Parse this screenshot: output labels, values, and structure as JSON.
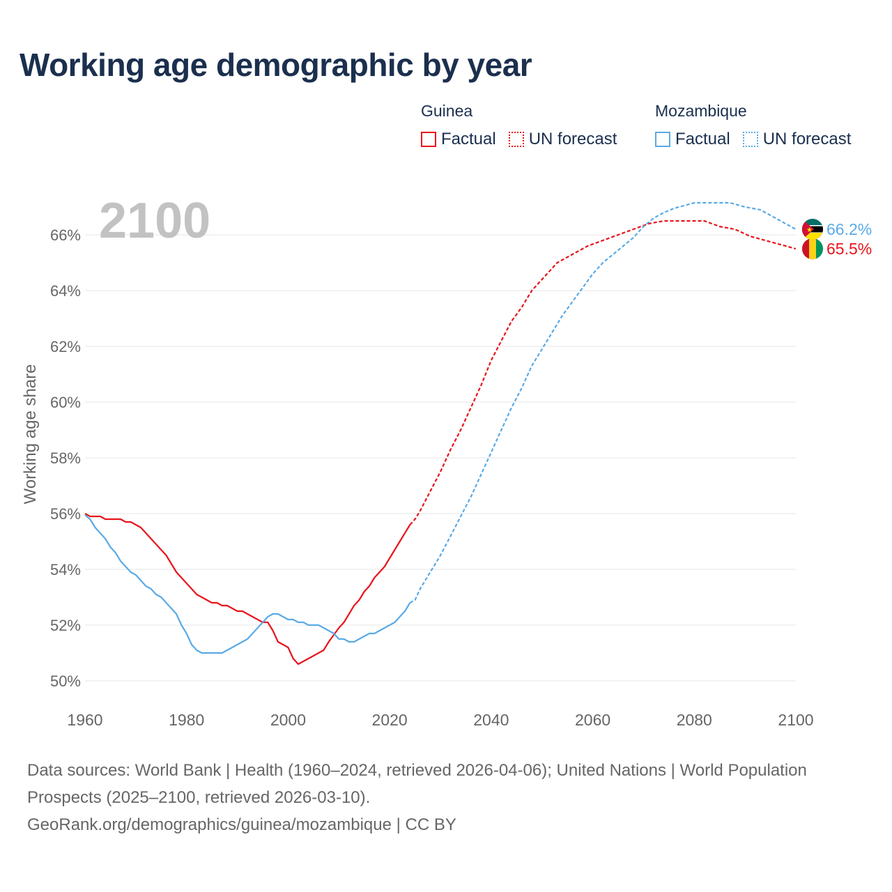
{
  "title": "Working age demographic by year",
  "legend": {
    "groups": [
      {
        "name": "Guinea",
        "color": "#e8141c",
        "factual_label": "Factual",
        "forecast_label": "UN forecast"
      },
      {
        "name": "Mozambique",
        "color": "#5aaae6",
        "factual_label": "Factual",
        "forecast_label": "UN forecast"
      }
    ]
  },
  "footer": {
    "line1": "Data sources: World Bank | Health (1960–2024, retrieved 2026-04-06); United Nations | World Population Prospects (2025–2100, retrieved 2026-03-10).",
    "line2": "GeoRank.org/demographics/guinea/mozambique | CC BY"
  },
  "chart_data": {
    "type": "line",
    "year_watermark": "2100",
    "ylabel": "Working age share",
    "xlabel": "",
    "xlim": [
      1960,
      2100
    ],
    "ylim": [
      49.5,
      67.5
    ],
    "x_ticks": [
      1960,
      1980,
      2000,
      2020,
      2040,
      2060,
      2080,
      2100
    ],
    "y_ticks": [
      50,
      52,
      54,
      56,
      58,
      60,
      62,
      64,
      66
    ],
    "y_tick_suffix": "%",
    "grid": true,
    "factual_end_year": 2024,
    "series": [
      {
        "name": "Guinea",
        "color": "#e8141c",
        "end_label": "65.5%",
        "flag": "guinea-flag",
        "points": [
          [
            1960,
            56.0
          ],
          [
            1961,
            55.9
          ],
          [
            1963,
            55.9
          ],
          [
            1964,
            55.8
          ],
          [
            1967,
            55.8
          ],
          [
            1968,
            55.7
          ],
          [
            1969,
            55.7
          ],
          [
            1971,
            55.5
          ],
          [
            1973,
            55.1
          ],
          [
            1976,
            54.5
          ],
          [
            1978,
            53.9
          ],
          [
            1980,
            53.5
          ],
          [
            1982,
            53.1
          ],
          [
            1984,
            52.9
          ],
          [
            1985,
            52.8
          ],
          [
            1986,
            52.8
          ],
          [
            1987,
            52.7
          ],
          [
            1988,
            52.7
          ],
          [
            1990,
            52.5
          ],
          [
            1991,
            52.5
          ],
          [
            1993,
            52.3
          ],
          [
            1995,
            52.1
          ],
          [
            1996,
            52.1
          ],
          [
            1997,
            51.8
          ],
          [
            1998,
            51.4
          ],
          [
            2000,
            51.2
          ],
          [
            2001,
            50.8
          ],
          [
            2002,
            50.6
          ],
          [
            2004,
            50.8
          ],
          [
            2005,
            50.9
          ],
          [
            2007,
            51.1
          ],
          [
            2008,
            51.4
          ],
          [
            2010,
            51.9
          ],
          [
            2011,
            52.1
          ],
          [
            2013,
            52.7
          ],
          [
            2014,
            52.9
          ],
          [
            2015,
            53.2
          ],
          [
            2016,
            53.4
          ],
          [
            2017,
            53.7
          ],
          [
            2019,
            54.1
          ],
          [
            2020,
            54.4
          ],
          [
            2022,
            55.0
          ],
          [
            2024,
            55.6
          ],
          [
            2025,
            55.8
          ],
          [
            2026,
            56.1
          ],
          [
            2028,
            56.8
          ],
          [
            2030,
            57.5
          ],
          [
            2032,
            58.3
          ],
          [
            2034,
            59.0
          ],
          [
            2036,
            59.8
          ],
          [
            2038,
            60.6
          ],
          [
            2040,
            61.5
          ],
          [
            2042,
            62.2
          ],
          [
            2044,
            62.9
          ],
          [
            2046,
            63.4
          ],
          [
            2048,
            64.0
          ],
          [
            2050,
            64.4
          ],
          [
            2052,
            64.8
          ],
          [
            2053,
            65.0
          ],
          [
            2056,
            65.3
          ],
          [
            2059,
            65.6
          ],
          [
            2062,
            65.8
          ],
          [
            2065,
            66.0
          ],
          [
            2068,
            66.2
          ],
          [
            2071,
            66.4
          ],
          [
            2074,
            66.5
          ],
          [
            2077,
            66.5
          ],
          [
            2082,
            66.5
          ],
          [
            2085,
            66.3
          ],
          [
            2088,
            66.2
          ],
          [
            2091,
            65.95
          ],
          [
            2094,
            65.8
          ],
          [
            2097,
            65.65
          ],
          [
            2100,
            65.5
          ]
        ]
      },
      {
        "name": "Mozambique",
        "color": "#5aaae6",
        "end_label": "66.2%",
        "flag": "mozambique-flag",
        "points": [
          [
            1960,
            55.95
          ],
          [
            1961,
            55.8
          ],
          [
            1962,
            55.5
          ],
          [
            1964,
            55.1
          ],
          [
            1965,
            54.8
          ],
          [
            1966,
            54.6
          ],
          [
            1967,
            54.3
          ],
          [
            1969,
            53.9
          ],
          [
            1970,
            53.8
          ],
          [
            1972,
            53.4
          ],
          [
            1973,
            53.3
          ],
          [
            1974,
            53.1
          ],
          [
            1975,
            53.0
          ],
          [
            1978,
            52.4
          ],
          [
            1979,
            52.0
          ],
          [
            1980,
            51.7
          ],
          [
            1981,
            51.3
          ],
          [
            1982,
            51.1
          ],
          [
            1983,
            51.0
          ],
          [
            1987,
            51.0
          ],
          [
            1989,
            51.2
          ],
          [
            1991,
            51.4
          ],
          [
            1992,
            51.5
          ],
          [
            1994,
            51.9
          ],
          [
            1996,
            52.3
          ],
          [
            1997,
            52.4
          ],
          [
            1998,
            52.4
          ],
          [
            2000,
            52.2
          ],
          [
            2001,
            52.2
          ],
          [
            2002,
            52.1
          ],
          [
            2003,
            52.1
          ],
          [
            2004,
            52.0
          ],
          [
            2006,
            52.0
          ],
          [
            2007,
            51.9
          ],
          [
            2009,
            51.7
          ],
          [
            2010,
            51.5
          ],
          [
            2011,
            51.5
          ],
          [
            2012,
            51.4
          ],
          [
            2013,
            51.4
          ],
          [
            2015,
            51.6
          ],
          [
            2016,
            51.7
          ],
          [
            2017,
            51.7
          ],
          [
            2019,
            51.9
          ],
          [
            2021,
            52.1
          ],
          [
            2023,
            52.5
          ],
          [
            2024,
            52.8
          ],
          [
            2025,
            52.9
          ],
          [
            2026,
            53.3
          ],
          [
            2028,
            53.9
          ],
          [
            2030,
            54.5
          ],
          [
            2032,
            55.2
          ],
          [
            2034,
            55.9
          ],
          [
            2036,
            56.6
          ],
          [
            2038,
            57.4
          ],
          [
            2040,
            58.2
          ],
          [
            2042,
            59.0
          ],
          [
            2044,
            59.8
          ],
          [
            2046,
            60.5
          ],
          [
            2048,
            61.3
          ],
          [
            2050,
            61.9
          ],
          [
            2052,
            62.5
          ],
          [
            2054,
            63.1
          ],
          [
            2056,
            63.6
          ],
          [
            2058,
            64.1
          ],
          [
            2060,
            64.6
          ],
          [
            2062,
            65.0
          ],
          [
            2064,
            65.3
          ],
          [
            2066,
            65.6
          ],
          [
            2068,
            65.9
          ],
          [
            2070,
            66.3
          ],
          [
            2072,
            66.6
          ],
          [
            2074,
            66.8
          ],
          [
            2076,
            66.95
          ],
          [
            2078,
            67.05
          ],
          [
            2080,
            67.15
          ],
          [
            2087,
            67.15
          ],
          [
            2090,
            67.0
          ],
          [
            2093,
            66.9
          ],
          [
            2095,
            66.7
          ],
          [
            2097,
            66.5
          ],
          [
            2099,
            66.3
          ],
          [
            2100,
            66.2
          ]
        ]
      }
    ]
  }
}
